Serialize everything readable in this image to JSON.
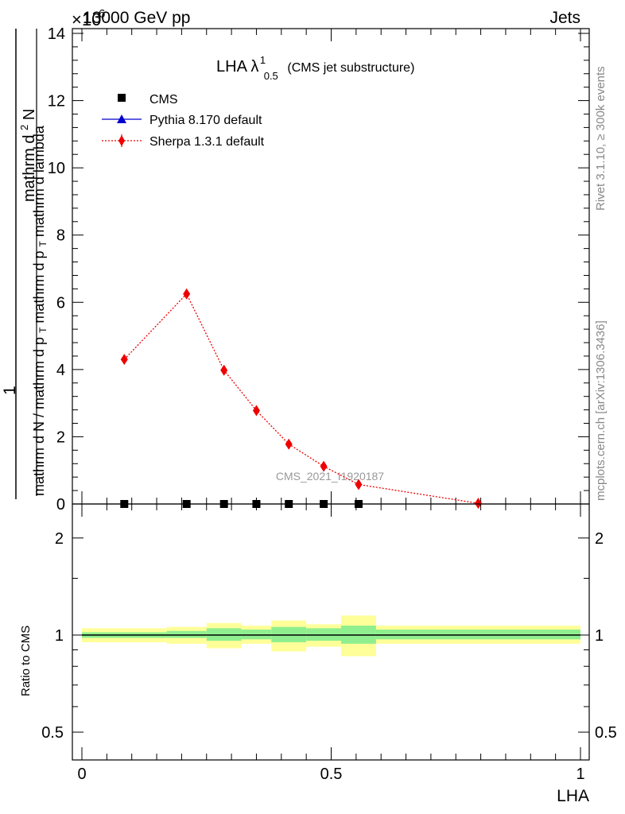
{
  "header": {
    "energy_label": "13000 GeV pp",
    "process_label": "Jets",
    "exponent_label": "×10",
    "exponent_power": "6"
  },
  "side_labels": {
    "rivet": "Rivet 3.1.10, ≥ 300k events",
    "mcplots": "mcplots.cern.ch [arXiv:1306.3436]"
  },
  "watermark": "CMS_2021_I1920187",
  "chart_data": [
    {
      "type": "line",
      "title_main": "LHA λ",
      "title_sup": "1",
      "title_sub": "0.5",
      "title_suffix": "(CMS jet substructure)",
      "ylabel_lines": [
        "1",
        "mathrm d N / mathrm d p_T mathrm d p_T mathrm d lambda",
        "mathrm d²N"
      ],
      "ylabel_parts": {
        "numerator": "mathrm d",
        "numerator_sup": "2",
        "numerator_end": "N",
        "one": "1",
        "denominator_a": "mathrm d N / mathrm d p",
        "denominator_sub_a": "T",
        "denominator_b": "mathrm d p",
        "denominator_sub_b": "T",
        "denominator_c": "mathrm d lambda"
      },
      "xlim": [
        0,
        1
      ],
      "ylim": [
        0,
        14
      ],
      "y_scale_factor": 1000000,
      "yticks": [
        0,
        2,
        4,
        6,
        8,
        10,
        12,
        14
      ],
      "ytick_labels": [
        "0",
        "2",
        "4",
        "6",
        "8",
        "10",
        "12",
        "14"
      ],
      "legend_position": "top-left",
      "series": [
        {
          "name": "CMS",
          "color": "#000000",
          "marker": "square",
          "x": [
            0.085,
            0.21,
            0.285,
            0.35,
            0.415,
            0.485,
            0.555
          ],
          "y": [
            0.0,
            0.0,
            0.0,
            0.0,
            0.0,
            0.0,
            0.0
          ]
        },
        {
          "name": "Pythia 8.170 default",
          "color": "#0000cc",
          "marker": "triangle",
          "x": [],
          "y": []
        },
        {
          "name": "Sherpa 1.3.1 default",
          "color": "#ee0000",
          "marker": "diamond",
          "line_style": "dotted",
          "x": [
            0.085,
            0.21,
            0.285,
            0.35,
            0.415,
            0.485,
            0.555,
            0.795
          ],
          "y": [
            4.3,
            6.25,
            3.98,
            2.78,
            1.78,
            1.12,
            0.58,
            0.02
          ],
          "yerr": [
            0.1,
            0.12,
            0.08,
            0.08,
            0.06,
            0.05,
            0.04,
            0.02
          ]
        }
      ]
    },
    {
      "type": "area",
      "ylabel": "Ratio to CMS",
      "xlabel": "LHA",
      "xlim": [
        0,
        1
      ],
      "xticks": [
        0,
        0.5,
        1
      ],
      "xtick_labels": [
        "0",
        "0.5",
        "1"
      ],
      "ytick_labels": [
        "0.5",
        "1",
        "2"
      ],
      "ytick_values": [
        0.5,
        1,
        2
      ],
      "reference_line": 1,
      "band_colors": {
        "inner": "#8fef8f",
        "outer": "#ffff99"
      },
      "bins": [
        {
          "lo": 0.0,
          "hi": 0.17,
          "inner": [
            0.98,
            1.02
          ],
          "outer": [
            0.95,
            1.05
          ]
        },
        {
          "lo": 0.17,
          "hi": 0.25,
          "inner": [
            0.98,
            1.03
          ],
          "outer": [
            0.94,
            1.06
          ]
        },
        {
          "lo": 0.25,
          "hi": 0.32,
          "inner": [
            0.96,
            1.05
          ],
          "outer": [
            0.91,
            1.09
          ]
        },
        {
          "lo": 0.32,
          "hi": 0.38,
          "inner": [
            0.97,
            1.04
          ],
          "outer": [
            0.94,
            1.07
          ]
        },
        {
          "lo": 0.38,
          "hi": 0.45,
          "inner": [
            0.95,
            1.06
          ],
          "outer": [
            0.89,
            1.11
          ]
        },
        {
          "lo": 0.45,
          "hi": 0.52,
          "inner": [
            0.96,
            1.05
          ],
          "outer": [
            0.92,
            1.08
          ]
        },
        {
          "lo": 0.52,
          "hi": 0.59,
          "inner": [
            0.94,
            1.07
          ],
          "outer": [
            0.86,
            1.15
          ]
        },
        {
          "lo": 0.59,
          "hi": 1.0,
          "inner": [
            0.97,
            1.04
          ],
          "outer": [
            0.94,
            1.07
          ]
        }
      ]
    }
  ]
}
